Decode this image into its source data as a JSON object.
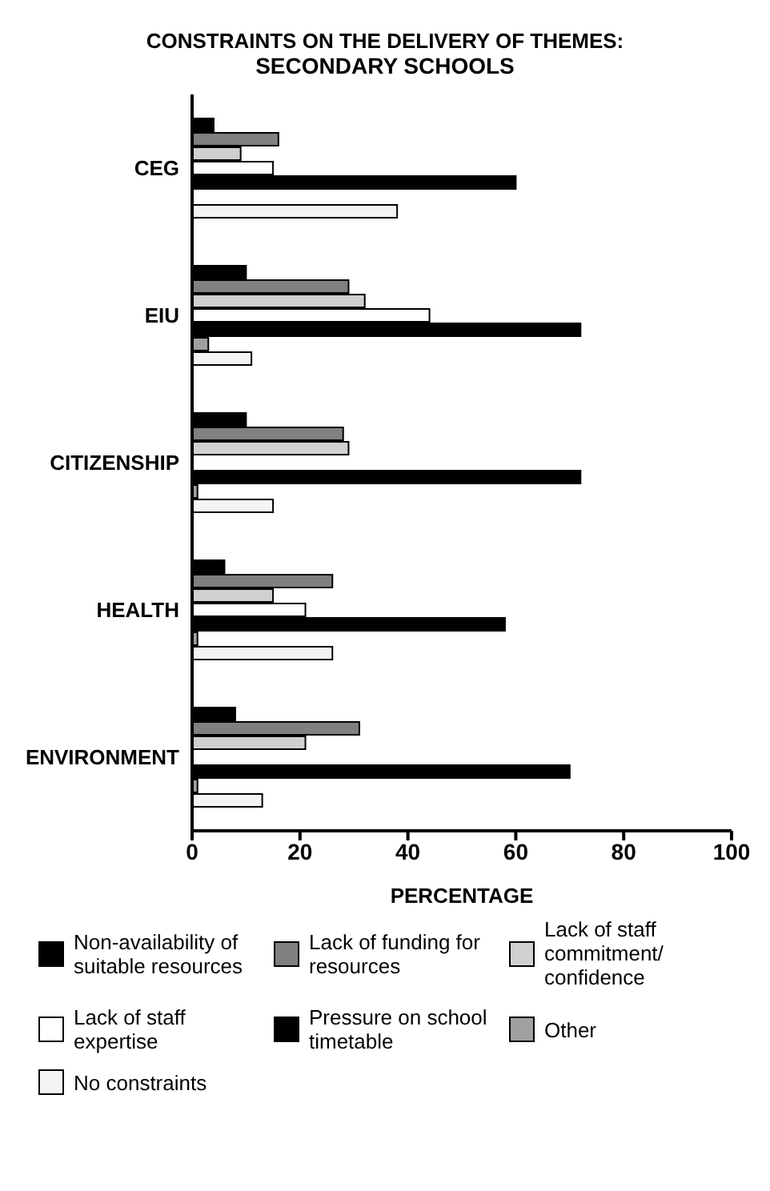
{
  "chart_data": {
    "type": "bar",
    "orientation": "horizontal",
    "title": "CONSTRAINTS ON THE DELIVERY OF THEMES:",
    "subtitle": "SECONDARY SCHOOLS",
    "xlabel": "PERCENTAGE",
    "categories": [
      "CEG",
      "EIU",
      "CITIZENSHIP",
      "HEALTH",
      "ENVIRONMENT"
    ],
    "xlim": [
      0,
      100
    ],
    "xticks": [
      0,
      20,
      40,
      60,
      80,
      100
    ],
    "grid": false,
    "legend": "bottom",
    "series": [
      {
        "name": "Non-availability of suitable resources",
        "color": "#000000",
        "values": [
          4,
          10,
          10,
          6,
          8
        ]
      },
      {
        "name": "Lack of funding for resources",
        "color": "#808080",
        "values": [
          16,
          29,
          28,
          26,
          31
        ]
      },
      {
        "name": "Lack of staff commitment/ confidence",
        "color": "#d0d0d0",
        "values": [
          9,
          32,
          29,
          15,
          21
        ]
      },
      {
        "name": "Lack of staff expertise",
        "color": "#ffffff",
        "values": [
          15,
          44,
          0,
          21,
          0
        ]
      },
      {
        "name": "Pressure on school timetable",
        "color": "#000000",
        "values": [
          60,
          72,
          72,
          58,
          70
        ]
      },
      {
        "name": "Other",
        "color": "#a0a0a0",
        "values": [
          0,
          3,
          1,
          1,
          1
        ]
      },
      {
        "name": "No constraints",
        "color": "#f4f4f4",
        "values": [
          38,
          11,
          15,
          26,
          13
        ]
      }
    ]
  }
}
